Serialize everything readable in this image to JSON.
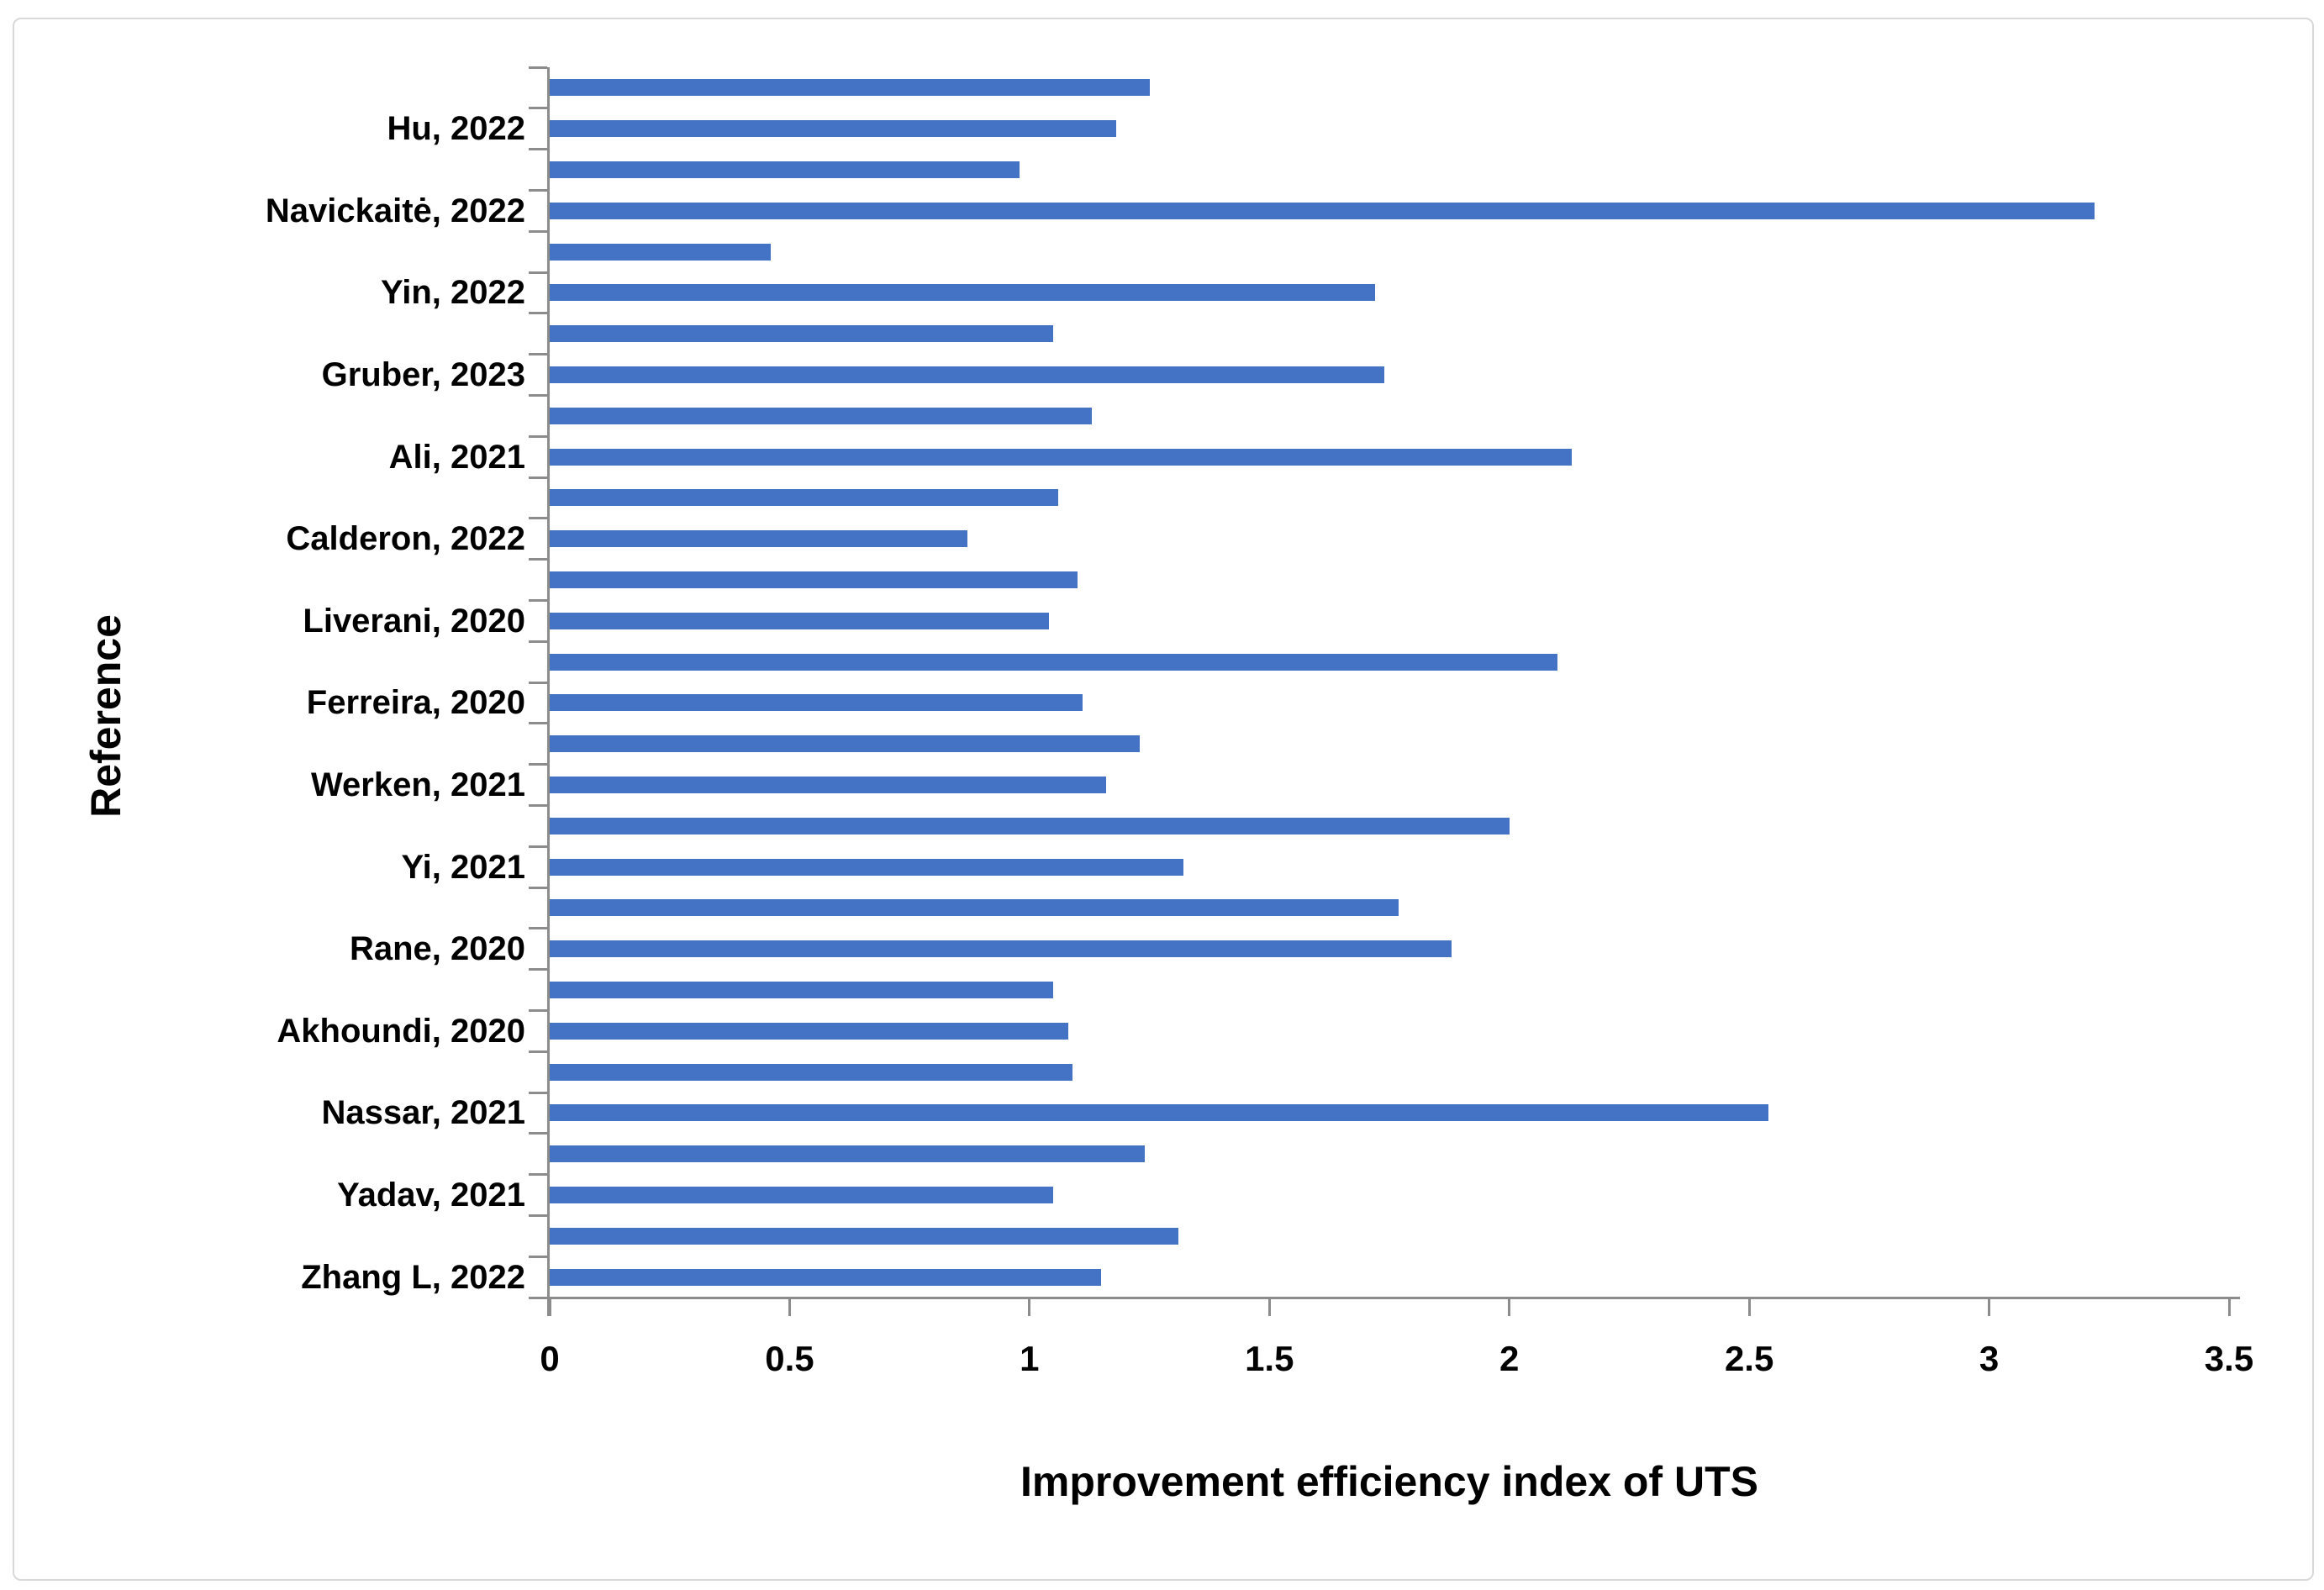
{
  "colors": {
    "bar_fill": "#4472c4",
    "axis_line": "#8c8c8c",
    "frame_border": "#d8d8d8",
    "text": "#000000",
    "background": "#ffffff"
  },
  "chart_data": {
    "type": "bar",
    "orientation": "horizontal",
    "title": "",
    "xlabel": "Improvement efficiency index of UTS",
    "ylabel": "Reference",
    "grid": false,
    "legend": false,
    "x_axis": {
      "min": 0,
      "max": 3.5,
      "tick_step": 0.5,
      "tick_labels": [
        "0",
        "0.5",
        "1",
        "1.5",
        "2",
        "2.5",
        "3",
        "3.5"
      ]
    },
    "label_interval": 2,
    "categories": [
      "Hu, 2022",
      "Navickaitė, 2022",
      "Yin, 2022",
      "Gruber, 2023",
      "Ali, 2021",
      "Calderon, 2022",
      "Liverani, 2020",
      "Ferreira, 2020",
      "Werken, 2021",
      "Yi, 2021",
      "Rane, 2020",
      "Akhoundi, 2020",
      "Nassar, 2021",
      "Yadav, 2021",
      "Zhang L, 2022"
    ],
    "bars": [
      {
        "label": "",
        "value": 1.25
      },
      {
        "label": "Hu, 2022",
        "value": 1.18
      },
      {
        "label": "",
        "value": 0.98
      },
      {
        "label": "Navickaitė, 2022",
        "value": 3.22
      },
      {
        "label": "",
        "value": 0.46
      },
      {
        "label": "Yin, 2022",
        "value": 1.72
      },
      {
        "label": "",
        "value": 1.05
      },
      {
        "label": "Gruber, 2023",
        "value": 1.74
      },
      {
        "label": "",
        "value": 1.13
      },
      {
        "label": "Ali, 2021",
        "value": 2.13
      },
      {
        "label": "",
        "value": 1.06
      },
      {
        "label": "Calderon, 2022",
        "value": 0.87
      },
      {
        "label": "",
        "value": 1.1
      },
      {
        "label": "Liverani, 2020",
        "value": 1.04
      },
      {
        "label": "",
        "value": 2.1
      },
      {
        "label": "Ferreira, 2020",
        "value": 1.11
      },
      {
        "label": "",
        "value": 1.23
      },
      {
        "label": "Werken, 2021",
        "value": 1.16
      },
      {
        "label": "",
        "value": 2.0
      },
      {
        "label": "Yi, 2021",
        "value": 1.32
      },
      {
        "label": "",
        "value": 1.77
      },
      {
        "label": "Rane, 2020",
        "value": 1.88
      },
      {
        "label": "",
        "value": 1.05
      },
      {
        "label": "Akhoundi, 2020",
        "value": 1.08
      },
      {
        "label": "",
        "value": 1.09
      },
      {
        "label": "Nassar, 2021",
        "value": 2.54
      },
      {
        "label": "",
        "value": 1.24
      },
      {
        "label": "Yadav, 2021",
        "value": 1.05
      },
      {
        "label": "",
        "value": 1.31
      },
      {
        "label": "Zhang L, 2022",
        "value": 1.15
      }
    ]
  }
}
